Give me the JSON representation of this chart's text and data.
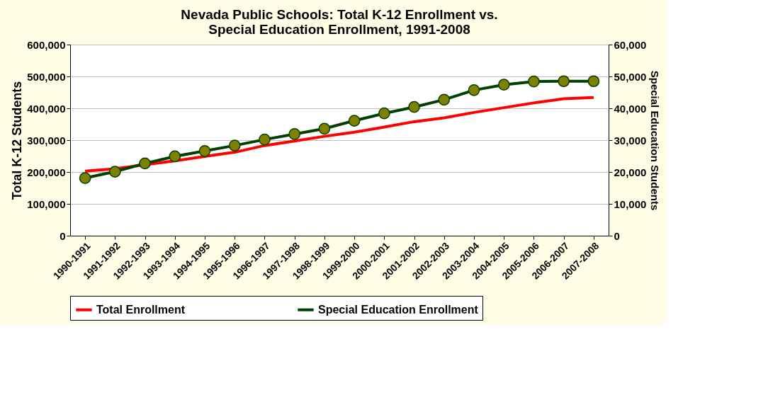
{
  "chart_data": {
    "type": "line",
    "title": [
      "Nevada Public Schools:  Total K-12 Enrollment vs.",
      "Special Education Enrollment, 1991-2008"
    ],
    "ylabel": "Total K-12 Students",
    "y2label": "Special Education Students",
    "categories": [
      "1990-1991",
      "1991-1992",
      "1992-1993",
      "1993-1994",
      "1994-1995",
      "1995-1996",
      "1996-1997",
      "1997-1998",
      "1998-1999",
      "1999-2000",
      "2000-2001",
      "2001-2002",
      "2002-2003",
      "2003-2004",
      "2004-2005",
      "2005-2006",
      "2006-2007",
      "2007-2008"
    ],
    "series": [
      {
        "name": "Total Enrollment",
        "color": "#ff0000",
        "marker": "none",
        "values": [
          203000,
          210000,
          223000,
          235000,
          249000,
          262000,
          283000,
          297000,
          312000,
          325000,
          341000,
          358000,
          370000,
          387000,
          402000,
          417000,
          430000,
          434000
        ]
      },
      {
        "name": "Special Education Enrollment",
        "color": "#004000",
        "marker": "circle",
        "axis": "y2",
        "values": [
          18100,
          20100,
          22700,
          24900,
          26600,
          28300,
          30200,
          31900,
          33600,
          36100,
          38400,
          40400,
          42700,
          45700,
          47400,
          48400,
          48500,
          48500
        ]
      }
    ],
    "ylim": [
      0,
      600000
    ],
    "yticks": [
      0,
      {
        "value": 100000,
        "label": "100,000"
      },
      {
        "value": 200000,
        "label": "200,000"
      },
      {
        "value": 300000,
        "label": "300,000"
      },
      {
        "value": 400000,
        "label": "400,000"
      },
      {
        "value": 500000,
        "label": "500,000"
      },
      {
        "value": 600000,
        "label": "600,000"
      }
    ],
    "y2lim": [
      0,
      60000
    ],
    "y2ticks": [
      0,
      {
        "value": 10000,
        "label": "10,000"
      },
      {
        "value": 20000,
        "label": "20,000"
      },
      {
        "value": 30000,
        "label": "30,000"
      },
      {
        "value": 40000,
        "label": "40,000"
      },
      {
        "value": 50000,
        "label": "50,000"
      },
      {
        "value": 60000,
        "label": "60,000"
      }
    ],
    "grid": "y",
    "legend": "bottom"
  }
}
